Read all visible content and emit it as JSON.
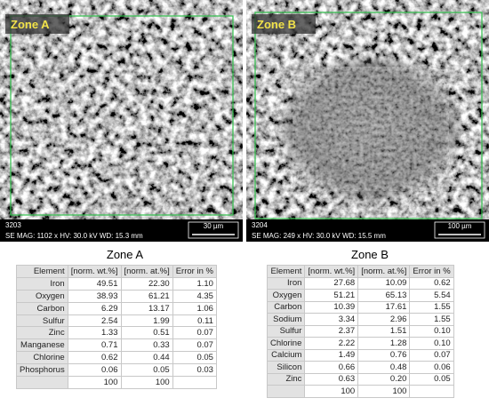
{
  "images": [
    {
      "label": "Zone A",
      "id": "3203",
      "info": "SE  MAG: 1102 x  HV: 30.0 kV  WD: 15.3 mm",
      "scale": "30 µm"
    },
    {
      "label": "Zone B",
      "id": "3204",
      "info": "SE  MAG: 249 x  HV: 30.0 kV  WD: 15.5 mm",
      "scale": "100 µm"
    }
  ],
  "tables": [
    {
      "title": "Zone A",
      "header": [
        "Element",
        "[norm. wt.%]",
        "[norm. at.%]",
        "Error in %"
      ],
      "rows": [
        [
          "Iron",
          "49.51",
          "22.30",
          "1.10"
        ],
        [
          "Oxygen",
          "38.93",
          "61.21",
          "4.35"
        ],
        [
          "Carbon",
          "6.29",
          "13.17",
          "1.06"
        ],
        [
          "Sulfur",
          "2.54",
          "1.99",
          "0.11"
        ],
        [
          "Zinc",
          "1.33",
          "0.51",
          "0.07"
        ],
        [
          "Manganese",
          "0.71",
          "0.33",
          "0.07"
        ],
        [
          "Chlorine",
          "0.62",
          "0.44",
          "0.05"
        ],
        [
          "Phosphorus",
          "0.06",
          "0.05",
          "0.03"
        ]
      ],
      "total": [
        "100",
        "100"
      ]
    },
    {
      "title": "Zone B",
      "header": [
        "Element",
        "[norm. wt.%]",
        "[norm. at.%]",
        "Error in %"
      ],
      "rows": [
        [
          "Iron",
          "27.68",
          "10.09",
          "0.62"
        ],
        [
          "Oxygen",
          "51.21",
          "65.13",
          "5.54"
        ],
        [
          "Carbon",
          "10.39",
          "17.61",
          "1.55"
        ],
        [
          "Sodium",
          "3.34",
          "2.96",
          "1.55"
        ],
        [
          "Sulfur",
          "2.37",
          "1.51",
          "0.10"
        ],
        [
          "Chlorine",
          "2.22",
          "1.28",
          "0.10"
        ],
        [
          "Calcium",
          "1.49",
          "0.76",
          "0.07"
        ],
        [
          "Silicon",
          "0.66",
          "0.48",
          "0.06"
        ],
        [
          "Zinc",
          "0.63",
          "0.20",
          "0.05"
        ]
      ],
      "total": [
        "100",
        "100"
      ]
    }
  ]
}
